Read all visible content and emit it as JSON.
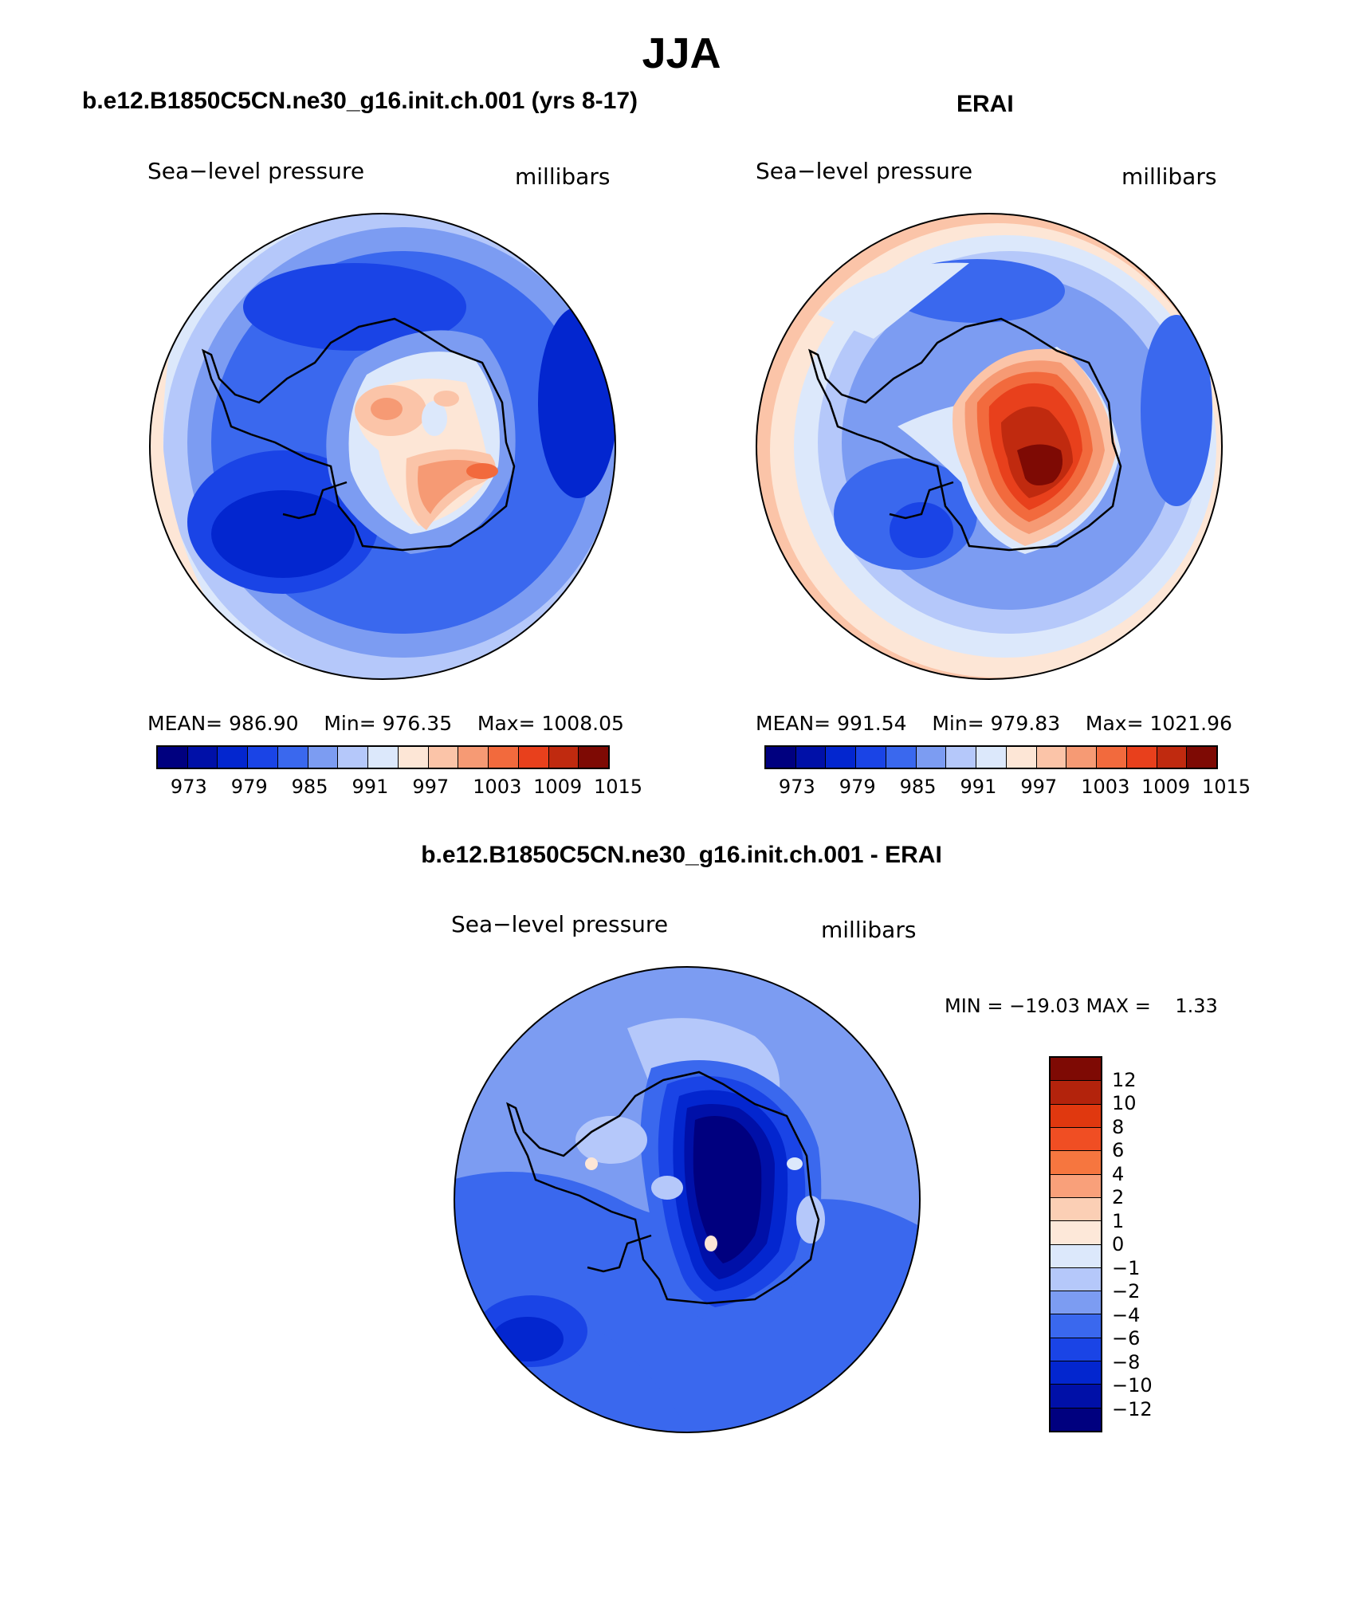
{
  "season": "JJA",
  "panels": [
    {
      "title": "b.e12.B1850C5CN.ne30_g16.init.ch.001 (yrs 8-17)",
      "field": "Sea−level pressure",
      "units": "millibars",
      "stats": {
        "mean_label": "MEAN=",
        "mean": "986.90",
        "min_label": "Min=",
        "min": "976.35",
        "max_label": "Max=",
        "max": "1008.05"
      },
      "ticks": [
        "973",
        "979",
        "985",
        "991",
        "997",
        "1003",
        "1009",
        "1015"
      ]
    },
    {
      "title": "ERAI",
      "field": "Sea−level pressure",
      "units": "millibars",
      "stats": {
        "mean_label": "MEAN=",
        "mean": "991.54",
        "min_label": "Min=",
        "min": "979.83",
        "max_label": "Max=",
        "max": "1021.96"
      },
      "ticks": [
        "973",
        "979",
        "985",
        "991",
        "997",
        "1003",
        "1009",
        "1015"
      ]
    }
  ],
  "diff": {
    "title": "b.e12.B1850C5CN.ne30_g16.init.ch.001 - ERAI",
    "field": "Sea−level pressure",
    "units": "millibars",
    "minmax": "MIN = −19.03 MAX =    1.33",
    "ticks": [
      "12",
      "10",
      "8",
      "6",
      "4",
      "2",
      "1",
      "0",
      "−1",
      "−2",
      "−4",
      "−6",
      "−8",
      "−10",
      "−12"
    ]
  },
  "colors": {
    "scale": [
      "#00007f",
      "#0010a8",
      "#0326cf",
      "#1a44e6",
      "#3a68ee",
      "#7c9cf2",
      "#b5c8fa",
      "#dce8fb",
      "#fde6d6",
      "#fbc4a8",
      "#f69a74",
      "#f26a3d",
      "#e8401c",
      "#c02a0f",
      "#7e0a04"
    ],
    "diff_scale": [
      "#7e0a04",
      "#b3230c",
      "#e0380f",
      "#f04e23",
      "#f6763f",
      "#f9a07a",
      "#fbcfb5",
      "#fde8d9",
      "#dce8fb",
      "#b5c8fa",
      "#7c9cf2",
      "#3a68ee",
      "#1a44e6",
      "#0326cf",
      "#0010a8",
      "#00007f"
    ]
  }
}
